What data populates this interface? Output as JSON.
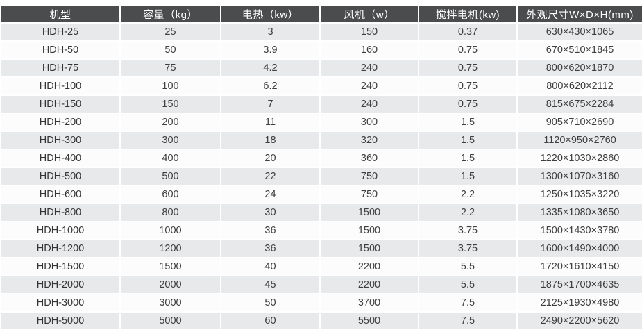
{
  "table": {
    "columns": [
      {
        "label": "机型"
      },
      {
        "label": "容量（kg）"
      },
      {
        "label": "电热（kw）"
      },
      {
        "label": "风机（w）"
      },
      {
        "label": "搅拌电机(kw)"
      },
      {
        "label": "外观尺寸W×D×H(mm)"
      }
    ],
    "rows": [
      [
        "HDH-25",
        "25",
        "3",
        "150",
        "0.37",
        "630×430×1065"
      ],
      [
        "HDH-50",
        "50",
        "3.9",
        "160",
        "0.75",
        "670×510×1845"
      ],
      [
        "HDH-75",
        "75",
        "4.2",
        "240",
        "0.75",
        "800×620×1870"
      ],
      [
        "HDH-100",
        "100",
        "6.2",
        "240",
        "0.75",
        "800×620×2112"
      ],
      [
        "HDH-150",
        "150",
        "7",
        "240",
        "0.75",
        "815×675×2284"
      ],
      [
        "HDH-200",
        "200",
        "11",
        "300",
        "1.5",
        "905×710×2690"
      ],
      [
        "HDH-300",
        "300",
        "18",
        "320",
        "1.5",
        "1120×950×2760"
      ],
      [
        "HDH-400",
        "400",
        "20",
        "360",
        "1.5",
        "1220×1030×2860"
      ],
      [
        "HDH-500",
        "500",
        "22",
        "750",
        "1.5",
        "1300×1070×3160"
      ],
      [
        "HDH-600",
        "600",
        "24",
        "750",
        "2.2",
        "1250×1035×3220"
      ],
      [
        "HDH-800",
        "800",
        "30",
        "1500",
        "2.2",
        "1335×1080×3650"
      ],
      [
        "HDH-1000",
        "1000",
        "36",
        "1500",
        "3.75",
        "1500×1430×3780"
      ],
      [
        "HDH-1200",
        "1200",
        "36",
        "1500",
        "3.75",
        "1600×1490×4000"
      ],
      [
        "HDH-1500",
        "1500",
        "40",
        "2200",
        "5.5",
        "1720×1610×4150"
      ],
      [
        "HDH-2000",
        "2000",
        "45",
        "2200",
        "5.5",
        "1875×1700×4635"
      ],
      [
        "HDH-3000",
        "3000",
        "50",
        "3700",
        "7.5",
        "2125×1930×4980"
      ],
      [
        "HDH-5000",
        "5000",
        "60",
        "5500",
        "7.5",
        "2490×2200×5620"
      ]
    ]
  },
  "chart_data": {
    "type": "table",
    "title": "",
    "columns": [
      "机型",
      "容量（kg）",
      "电热（kw）",
      "风机（w）",
      "搅拌电机(kw)",
      "外观尺寸W×D×H(mm)"
    ],
    "rows": [
      [
        "HDH-25",
        25,
        3,
        150,
        0.37,
        "630×430×1065"
      ],
      [
        "HDH-50",
        50,
        3.9,
        160,
        0.75,
        "670×510×1845"
      ],
      [
        "HDH-75",
        75,
        4.2,
        240,
        0.75,
        "800×620×1870"
      ],
      [
        "HDH-100",
        100,
        6.2,
        240,
        0.75,
        "800×620×2112"
      ],
      [
        "HDH-150",
        150,
        7,
        240,
        0.75,
        "815×675×2284"
      ],
      [
        "HDH-200",
        200,
        11,
        300,
        1.5,
        "905×710×2690"
      ],
      [
        "HDH-300",
        300,
        18,
        320,
        1.5,
        "1120×950×2760"
      ],
      [
        "HDH-400",
        400,
        20,
        360,
        1.5,
        "1220×1030×2860"
      ],
      [
        "HDH-500",
        500,
        22,
        750,
        1.5,
        "1300×1070×3160"
      ],
      [
        "HDH-600",
        600,
        24,
        750,
        2.2,
        "1250×1035×3220"
      ],
      [
        "HDH-800",
        800,
        30,
        1500,
        2.2,
        "1335×1080×3650"
      ],
      [
        "HDH-1000",
        1000,
        36,
        1500,
        3.75,
        "1500×1430×3780"
      ],
      [
        "HDH-1200",
        1200,
        36,
        1500,
        3.75,
        "1600×1490×4000"
      ],
      [
        "HDH-1500",
        1500,
        40,
        2200,
        5.5,
        "1720×1610×4150"
      ],
      [
        "HDH-2000",
        2000,
        45,
        2200,
        5.5,
        "1875×1700×4635"
      ],
      [
        "HDH-3000",
        3000,
        50,
        3700,
        7.5,
        "2125×1930×4980"
      ],
      [
        "HDH-5000",
        5000,
        60,
        5500,
        7.5,
        "2490×2200×5620"
      ]
    ]
  },
  "colors": {
    "header_bg": "#4b4c4e",
    "header_text": "#ffffff",
    "first_col_bg": "#b3b6b9",
    "row_odd_bg": "#e8e9eb",
    "row_even_bg": "#fcfcfd",
    "grid_line": "#ffffff",
    "body_text": "#3e3e40"
  }
}
